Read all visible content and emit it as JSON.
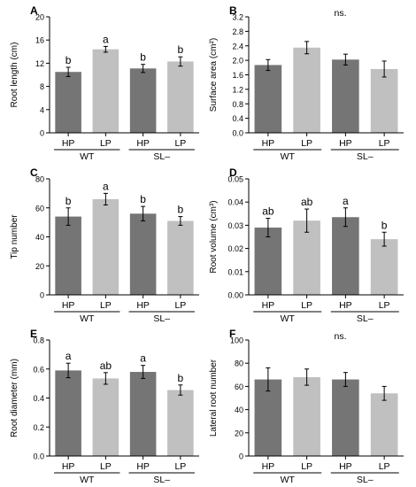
{
  "colors": {
    "dark_bar": "#757575",
    "light_bar": "#c0c0c0",
    "axis": "#000000"
  },
  "chart_data": [
    {
      "type": "bar",
      "panel_label": "A",
      "ylabel": "Root length (cm)",
      "annotation": "",
      "ylim": [
        0,
        20
      ],
      "yticks": [
        0,
        4,
        8,
        12,
        16,
        20
      ],
      "ytick_labels": [
        "0",
        "4",
        "8",
        "12",
        "16",
        "20"
      ],
      "categories": [
        "HP",
        "LP",
        "HP",
        "LP"
      ],
      "groups": [
        "WT",
        "SL–"
      ],
      "values": [
        10.5,
        14.4,
        11.1,
        12.3
      ],
      "errors": [
        0.8,
        0.5,
        0.7,
        0.8
      ],
      "letters": [
        "b",
        "a",
        "b",
        "b"
      ],
      "colors": [
        "dark",
        "light",
        "dark",
        "light"
      ]
    },
    {
      "type": "bar",
      "panel_label": "B",
      "ylabel": "Surface area (cm²)",
      "annotation": "ns.",
      "ylim": [
        0,
        3.2
      ],
      "yticks": [
        0,
        0.4,
        0.8,
        1.2,
        1.6,
        2.0,
        2.4,
        2.8,
        3.2
      ],
      "ytick_labels": [
        "0.0",
        "0.4",
        "0.8",
        "1.2",
        "1.6",
        "2.0",
        "2.4",
        "2.8",
        "3.2"
      ],
      "categories": [
        "HP",
        "LP",
        "HP",
        "LP"
      ],
      "groups": [
        "WT",
        "SL–"
      ],
      "values": [
        1.87,
        2.35,
        2.02,
        1.76
      ],
      "errors": [
        0.15,
        0.17,
        0.15,
        0.22
      ],
      "letters": [
        "",
        "",
        "",
        ""
      ],
      "colors": [
        "dark",
        "light",
        "dark",
        "light"
      ]
    },
    {
      "type": "bar",
      "panel_label": "C",
      "ylabel": "Tip number",
      "annotation": "",
      "ylim": [
        0,
        80
      ],
      "yticks": [
        0,
        20,
        40,
        60,
        80
      ],
      "ytick_labels": [
        "0",
        "20",
        "40",
        "60",
        "80"
      ],
      "categories": [
        "HP",
        "LP",
        "HP",
        "LP"
      ],
      "groups": [
        "WT",
        "SL–"
      ],
      "values": [
        54,
        66,
        56,
        51
      ],
      "errors": [
        6,
        4,
        5,
        3
      ],
      "letters": [
        "b",
        "a",
        "b",
        "b"
      ],
      "colors": [
        "dark",
        "light",
        "dark",
        "light"
      ]
    },
    {
      "type": "bar",
      "panel_label": "D",
      "ylabel": "Root volume (cm³)",
      "annotation": "",
      "ylim": [
        0,
        0.05
      ],
      "yticks": [
        0,
        0.01,
        0.02,
        0.03,
        0.04,
        0.05
      ],
      "ytick_labels": [
        "0.00",
        "0.01",
        "0.02",
        "0.03",
        "0.04",
        "0.05"
      ],
      "categories": [
        "HP",
        "LP",
        "HP",
        "LP"
      ],
      "groups": [
        "WT",
        "SL–"
      ],
      "values": [
        0.029,
        0.032,
        0.0335,
        0.024
      ],
      "errors": [
        0.004,
        0.005,
        0.004,
        0.003
      ],
      "letters": [
        "ab",
        "ab",
        "a",
        "b"
      ],
      "colors": [
        "dark",
        "light",
        "dark",
        "light"
      ]
    },
    {
      "type": "bar",
      "panel_label": "E",
      "ylabel": "Root diameter (mm)",
      "annotation": "",
      "ylim": [
        0,
        0.8
      ],
      "yticks": [
        0,
        0.2,
        0.4,
        0.6,
        0.8
      ],
      "ytick_labels": [
        "0.0",
        "0.2",
        "0.4",
        "0.6",
        "0.8"
      ],
      "categories": [
        "HP",
        "LP",
        "HP",
        "LP"
      ],
      "groups": [
        "WT",
        "SL–"
      ],
      "values": [
        0.59,
        0.535,
        0.58,
        0.455
      ],
      "errors": [
        0.05,
        0.04,
        0.045,
        0.035
      ],
      "letters": [
        "a",
        "ab",
        "a",
        "b"
      ],
      "colors": [
        "dark",
        "light",
        "dark",
        "light"
      ]
    },
    {
      "type": "bar",
      "panel_label": "F",
      "ylabel": "Lateral root number",
      "annotation": "ns.",
      "ylim": [
        0,
        100
      ],
      "yticks": [
        0,
        20,
        40,
        60,
        80,
        100
      ],
      "ytick_labels": [
        "0",
        "20",
        "40",
        "60",
        "80",
        "100"
      ],
      "categories": [
        "HP",
        "LP",
        "HP",
        "LP"
      ],
      "groups": [
        "WT",
        "SL–"
      ],
      "values": [
        66,
        68,
        66,
        54
      ],
      "errors": [
        10,
        7,
        6,
        6
      ],
      "letters": [
        "",
        "",
        "",
        ""
      ],
      "colors": [
        "dark",
        "light",
        "dark",
        "light"
      ]
    }
  ]
}
